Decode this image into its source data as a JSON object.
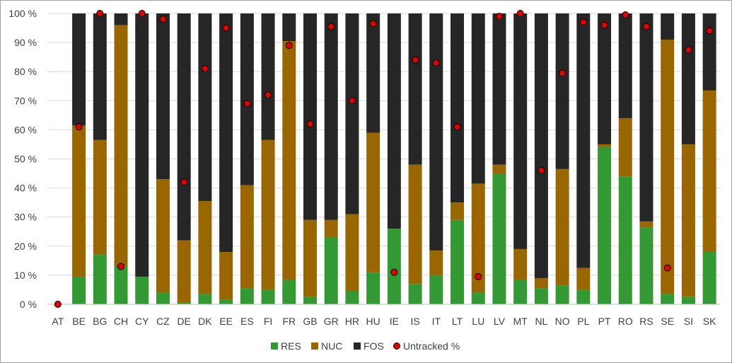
{
  "chart_data": {
    "type": "bar",
    "stacked": true,
    "categories": [
      "AT",
      "BE",
      "BG",
      "CH",
      "CY",
      "CZ",
      "DE",
      "DK",
      "EE",
      "ES",
      "FI",
      "FR",
      "GB",
      "GR",
      "HR",
      "HU",
      "IE",
      "IS",
      "IT",
      "LT",
      "LU",
      "LV",
      "MT",
      "NL",
      "NO",
      "PL",
      "PT",
      "RO",
      "RS",
      "SE",
      "SI",
      "SK"
    ],
    "series": [
      {
        "name": "RES",
        "color": "#339933",
        "values": [
          0,
          9.5,
          17,
          13,
          9.5,
          4,
          0.5,
          3.5,
          1.5,
          5.5,
          5,
          8.5,
          2.5,
          23,
          4.5,
          11,
          26,
          7,
          10,
          29,
          4,
          45,
          8.5,
          5.5,
          6.5,
          5,
          54,
          44,
          26.5,
          3.5,
          2.5,
          18
        ]
      },
      {
        "name": "NUC",
        "color": "#996600",
        "values": [
          0,
          52,
          39.5,
          83,
          0,
          39,
          21.5,
          32,
          16.5,
          35.5,
          51.5,
          82,
          26.5,
          6,
          26.5,
          48,
          0,
          41,
          8.5,
          6,
          37.5,
          3,
          10.5,
          3.5,
          40,
          7.5,
          1,
          20,
          2,
          87.5,
          52.5,
          55.5
        ]
      },
      {
        "name": "FOS",
        "color": "#262626",
        "values": [
          0,
          38.5,
          43.5,
          4,
          90.5,
          57,
          78,
          64.5,
          82,
          59,
          43.5,
          9.5,
          71,
          71,
          69,
          41,
          74,
          52,
          81.5,
          65,
          58.5,
          52,
          81,
          91,
          53.5,
          87.5,
          45,
          36,
          71.5,
          9,
          45,
          26.5
        ]
      }
    ],
    "overlay": {
      "name": "Untracked %",
      "color": "#e00000",
      "type": "scatter",
      "values": [
        0,
        61,
        100,
        13,
        100,
        98,
        42,
        81,
        95,
        69,
        72,
        89,
        62,
        95.5,
        70,
        96.5,
        11,
        84,
        83,
        61,
        9.5,
        99,
        100,
        46,
        79.5,
        97,
        96,
        99.5,
        95.5,
        12.5,
        87.5,
        94
      ]
    },
    "ylim": [
      0,
      100
    ],
    "yticks": [
      "0 %",
      "10 %",
      "20 %",
      "30 %",
      "40 %",
      "50 %",
      "60 %",
      "70 %",
      "80 %",
      "90 %",
      "100 %"
    ],
    "title": "",
    "xlabel": "",
    "ylabel": "",
    "legend": {
      "placement": "bottom",
      "items": [
        "RES",
        "NUC",
        "FOS",
        "Untracked %"
      ]
    }
  }
}
